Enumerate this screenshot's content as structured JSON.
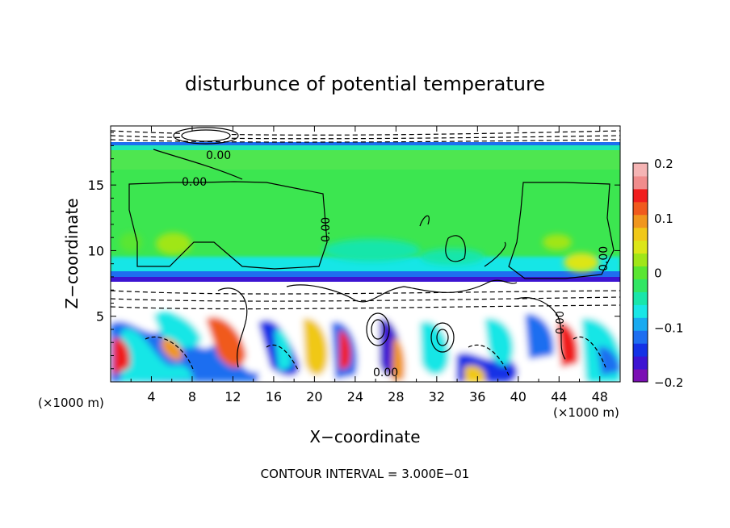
{
  "chart_data": {
    "type": "heatmap",
    "title": "disturbunce of potential temperature",
    "xlabel": "X−coordinate",
    "ylabel": "Z−coordinate",
    "x_unit_label": "(×1000 m)",
    "x_unit_label_right": "(×1000 m)",
    "xlim": [
      0,
      50
    ],
    "ylim": [
      0,
      19.5
    ],
    "x_ticks": [
      4,
      8,
      12,
      16,
      20,
      24,
      28,
      32,
      36,
      40,
      44,
      48
    ],
    "y_ticks": [
      5,
      10,
      15
    ],
    "colorbar": {
      "min": -0.2,
      "max": 0.2,
      "ticks": [
        {
          "value": 0.2,
          "label": "0.2"
        },
        {
          "value": 0.1,
          "label": "0.1"
        },
        {
          "value": 0,
          "label": "0"
        },
        {
          "value": -0.1,
          "label": "−0.1"
        },
        {
          "value": -0.2,
          "label": "−0.2"
        }
      ],
      "colors": [
        "#7b0fb4",
        "#3d14d2",
        "#1432e6",
        "#1e6ef0",
        "#19aaf0",
        "#19e6e6",
        "#19e6aa",
        "#32e664",
        "#5ae632",
        "#a0e619",
        "#dce619",
        "#f0c819",
        "#f0961e",
        "#f05a1e",
        "#f01e1e",
        "#f08c8c",
        "#f5b4b4"
      ]
    },
    "contour_label": "0.00",
    "footer": "CONTOUR INTERVAL = 3.000E−01",
    "contour_interval": 0.3
  }
}
